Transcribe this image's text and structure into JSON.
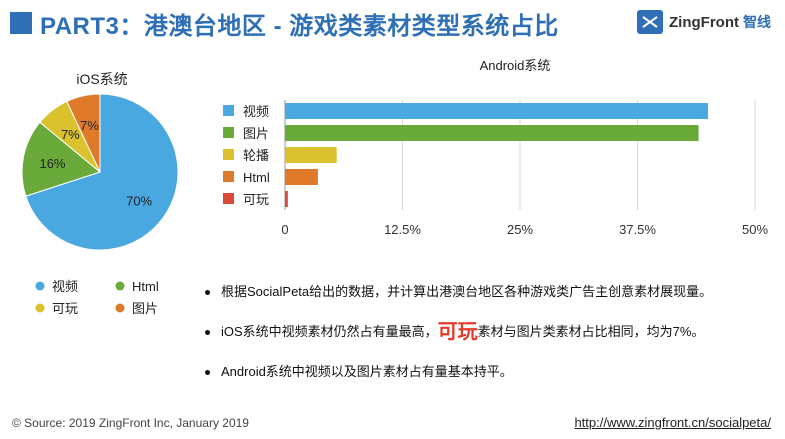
{
  "header": {
    "title": "PART3：港澳台地区 - 游戏类素材类型系统占比",
    "logo_text": "ZingFront",
    "logo_cn": "智线"
  },
  "colors": {
    "blue": "#4aa8e0",
    "green": "#6aaa3a",
    "yellow": "#d9c22e",
    "orange": "#e07a2b",
    "red": "#d94a3a",
    "accent": "#2f6fb5"
  },
  "chart_data": [
    {
      "type": "pie",
      "title": "iOS系统",
      "slices": [
        {
          "label": "视频",
          "value": 70,
          "display": "70%",
          "color": "#4aa8e0"
        },
        {
          "label": "Html",
          "value": 16,
          "display": "16%",
          "color": "#6aaa3a"
        },
        {
          "label": "可玩",
          "value": 7,
          "display": "7%",
          "color": "#d9c22e"
        },
        {
          "label": "图片",
          "value": 7,
          "display": "7%",
          "color": "#e07a2b"
        }
      ],
      "legend": [
        {
          "label": "视频",
          "color": "#4aa8e0"
        },
        {
          "label": "Html",
          "color": "#6aaa3a"
        },
        {
          "label": "可玩",
          "color": "#d9c22e"
        },
        {
          "label": "图片",
          "color": "#e07a2b"
        }
      ],
      "legend_placement": "bottom"
    },
    {
      "type": "bar",
      "orientation": "horizontal",
      "title": "Android系统",
      "categories": [
        "视频",
        "图片",
        "轮播",
        "Html",
        "可玩"
      ],
      "values": [
        45,
        44,
        5.5,
        3.5,
        0.3
      ],
      "colors": [
        "#4aa8e0",
        "#6aaa3a",
        "#d9c22e",
        "#e07a2b",
        "#d94a3a"
      ],
      "xlim": [
        0,
        50
      ],
      "xticks": [
        0,
        12.5,
        25,
        37.5,
        50
      ],
      "xtick_labels": [
        "0",
        "12.5%",
        "25%",
        "37.5%",
        "50%"
      ],
      "grid": true,
      "legend_placement": "left"
    }
  ],
  "bullets": {
    "b1": "根据SocialPeta给出的数据，并计算出港澳台地区各种游戏类广告主创意素材展现量。",
    "b2_pre": "iOS系统中视频素材仍然占有量最高，",
    "b2_hl": "可玩",
    "b2_post": "素材与图片类素材占比相同，均为7%。",
    "b3": "Android系统中视频以及图片素材占有量基本持平。"
  },
  "footer": {
    "source": "© Source: 2019 ZingFront Inc, January 2019",
    "url": "http://www.zingfront.cn/socialpeta/"
  }
}
